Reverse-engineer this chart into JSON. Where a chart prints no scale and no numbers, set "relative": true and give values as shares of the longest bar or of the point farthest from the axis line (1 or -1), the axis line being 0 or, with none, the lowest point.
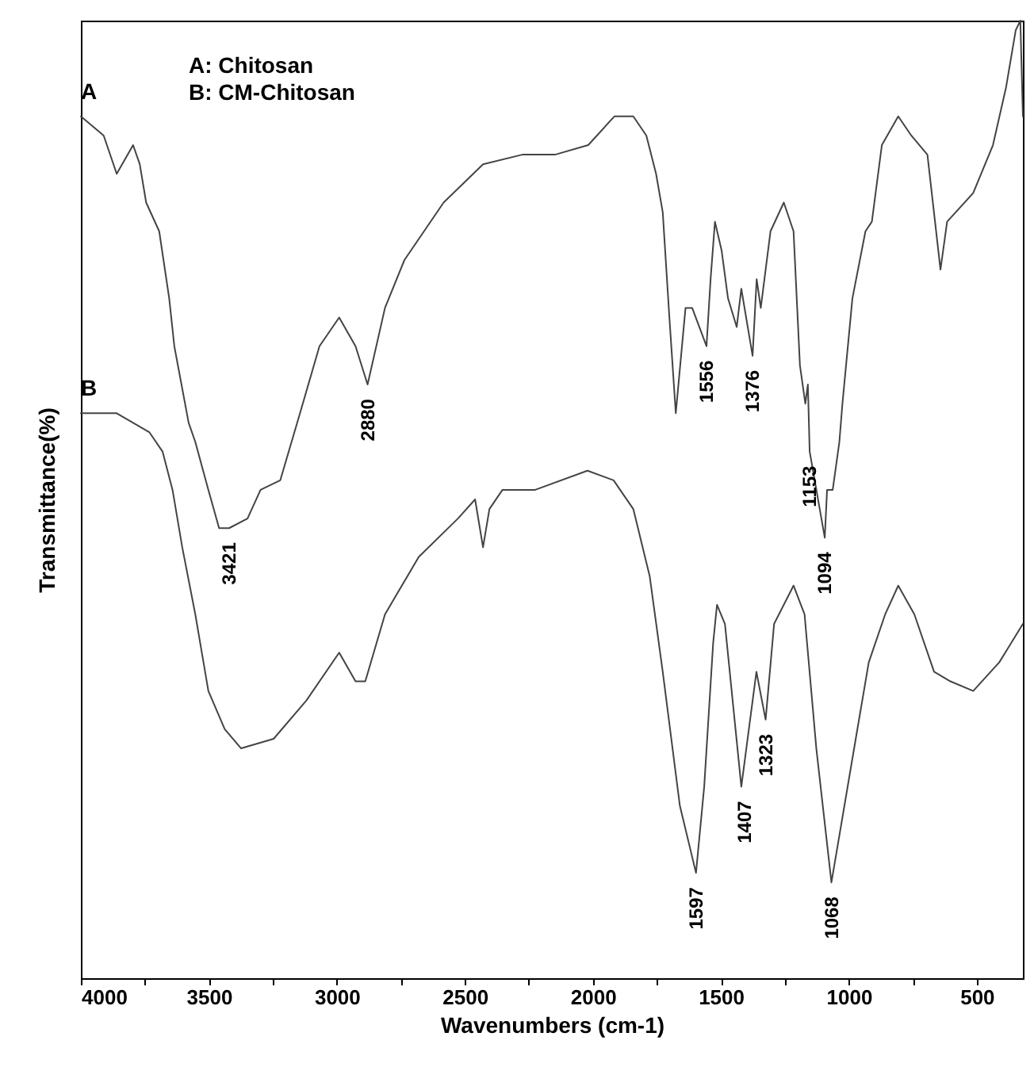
{
  "chart_data": {
    "type": "line",
    "xlabel": "Wavenumbers (cm-1)",
    "ylabel": "Transmittance(%)",
    "relative": true,
    "grid": false,
    "xlim": [
      4000,
      320
    ],
    "xticks": [
      4000,
      {
        "value": 3750,
        "label": null
      },
      3500,
      {
        "value": 3250,
        "label": null
      },
      3000,
      {
        "value": 2750,
        "label": null
      },
      2500,
      {
        "value": 2250,
        "label": null
      },
      2000,
      {
        "value": 1750,
        "label": null
      },
      1500,
      {
        "value": 1250,
        "label": null
      },
      1000,
      {
        "value": 750,
        "label": null
      },
      500
    ],
    "annotations": [
      "A: Chitosan",
      "B: CM-Chitosan",
      {
        "text": "3421",
        "x": 3421,
        "y": 0.47
      },
      {
        "text": "2880",
        "x": 2880,
        "y": 0.62
      },
      {
        "text": "1556",
        "x": 1556,
        "y": 0.66
      },
      {
        "text": "1376",
        "x": 1376,
        "y": 0.65
      },
      {
        "text": "1153",
        "x": 1153,
        "y": 0.55
      },
      {
        "text": "1094",
        "x": 1094,
        "y": 0.46
      },
      {
        "text": "1597",
        "x": 1597,
        "y": 0.11
      },
      {
        "text": "1407",
        "x": 1407,
        "y": 0.2
      },
      {
        "text": "1323",
        "x": 1323,
        "y": 0.27
      },
      {
        "text": "1068",
        "x": 1068,
        "y": 0.1
      }
    ],
    "series": [
      {
        "name": "A",
        "color": "#444444",
        "x": [
          4000,
          3911,
          3860,
          3796,
          3770,
          3745,
          3694,
          3655,
          3635,
          3579,
          3553,
          3502,
          3460,
          3421,
          3349,
          3298,
          3221,
          3144,
          3068,
          2991,
          2927,
          2880,
          2812,
          2736,
          2583,
          2429,
          2276,
          2148,
          2018,
          1916,
          1842,
          1791,
          1753,
          1727,
          1701,
          1676,
          1638,
          1612,
          1556,
          1540,
          1523,
          1497,
          1472,
          1438,
          1420,
          1376,
          1360,
          1344,
          1306,
          1254,
          1216,
          1191,
          1170,
          1160,
          1153,
          1094,
          1085,
          1063,
          1037,
          1025,
          986,
          935,
          910,
          871,
          807,
          756,
          693,
          642,
          616,
          514,
          437,
          386,
          348,
          330,
          320
        ],
        "values": [
          0.9,
          0.88,
          0.84,
          0.87,
          0.85,
          0.81,
          0.78,
          0.71,
          0.66,
          0.58,
          0.56,
          0.51,
          0.47,
          0.47,
          0.48,
          0.51,
          0.52,
          0.59,
          0.66,
          0.69,
          0.66,
          0.62,
          0.7,
          0.75,
          0.81,
          0.85,
          0.86,
          0.86,
          0.87,
          0.9,
          0.9,
          0.88,
          0.84,
          0.8,
          0.69,
          0.59,
          0.7,
          0.7,
          0.66,
          0.73,
          0.79,
          0.76,
          0.71,
          0.68,
          0.72,
          0.65,
          0.73,
          0.7,
          0.78,
          0.81,
          0.78,
          0.64,
          0.6,
          0.62,
          0.55,
          0.46,
          0.51,
          0.51,
          0.56,
          0.6,
          0.71,
          0.78,
          0.79,
          0.87,
          0.9,
          0.88,
          0.86,
          0.74,
          0.79,
          0.82,
          0.87,
          0.93,
          0.99,
          1.0,
          0.9
        ]
      },
      {
        "name": "B",
        "color": "#444444",
        "x": [
          4000,
          3860,
          3732,
          3681,
          3642,
          3604,
          3553,
          3502,
          3438,
          3374,
          3247,
          3119,
          2991,
          2927,
          2889,
          2812,
          2680,
          2527,
          2460,
          2429,
          2404,
          2353,
          2225,
          2021,
          1919,
          1842,
          1778,
          1727,
          1660,
          1597,
          1565,
          1530,
          1515,
          1484,
          1420,
          1361,
          1325,
          1292,
          1216,
          1173,
          1127,
          1068,
          973,
          922,
          858,
          807,
          744,
          667,
          603,
          514,
          412,
          320
        ],
        "values": [
          0.59,
          0.59,
          0.57,
          0.55,
          0.51,
          0.45,
          0.38,
          0.3,
          0.26,
          0.24,
          0.25,
          0.29,
          0.34,
          0.31,
          0.31,
          0.38,
          0.44,
          0.48,
          0.5,
          0.45,
          0.49,
          0.51,
          0.51,
          0.53,
          0.52,
          0.49,
          0.42,
          0.32,
          0.18,
          0.11,
          0.2,
          0.35,
          0.39,
          0.37,
          0.2,
          0.32,
          0.27,
          0.37,
          0.41,
          0.38,
          0.24,
          0.1,
          0.25,
          0.33,
          0.38,
          0.41,
          0.38,
          0.32,
          0.31,
          0.3,
          0.33,
          0.37
        ]
      }
    ]
  }
}
